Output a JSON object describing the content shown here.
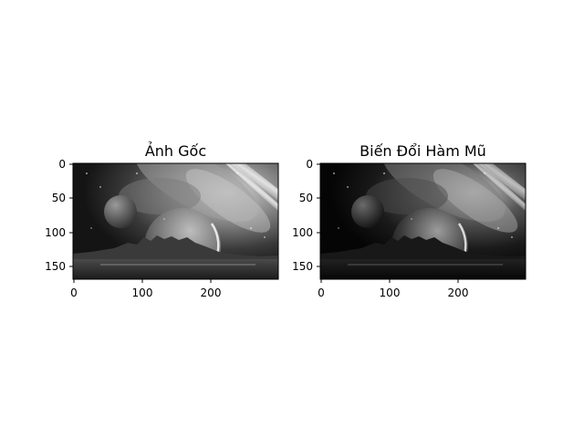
{
  "figure": {
    "panels": [
      {
        "title": "Ảnh Gốc",
        "image": "space-landscape-grayscale",
        "variant": "original",
        "x_ticks": [
          "0",
          "100",
          "200"
        ],
        "y_ticks": [
          "0",
          "50",
          "100",
          "150"
        ]
      },
      {
        "title": "Biến Đổi Hàm Mũ",
        "image": "space-landscape-grayscale-exponential",
        "variant": "exponential",
        "x_ticks": [
          "0",
          "100",
          "200"
        ],
        "y_ticks": [
          "0",
          "50",
          "100",
          "150"
        ]
      }
    ],
    "colors": {
      "background": "#ffffff",
      "axis": "#000000"
    }
  }
}
